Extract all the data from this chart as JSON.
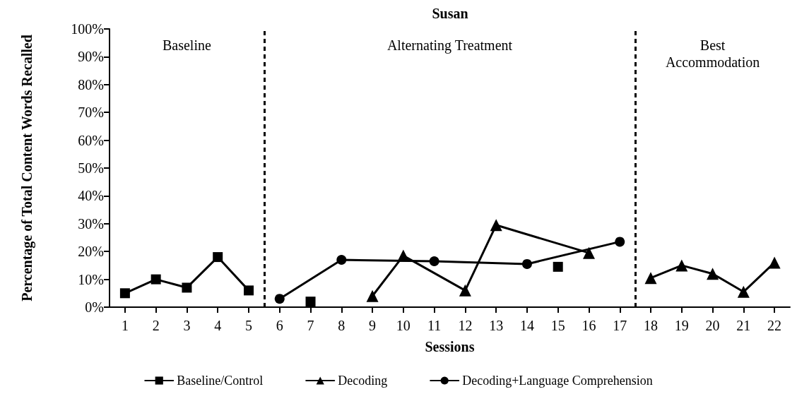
{
  "chart_data": {
    "type": "line",
    "title": "Susan",
    "xlabel": "Sessions",
    "ylabel": "Percentage of Total Content Words Recalled",
    "xlim": [
      0.5,
      22.5
    ],
    "xticks": [
      1,
      2,
      3,
      4,
      5,
      6,
      7,
      8,
      9,
      10,
      11,
      12,
      13,
      14,
      15,
      16,
      17,
      18,
      19,
      20,
      21,
      22
    ],
    "ylim": [
      0,
      100
    ],
    "yticks": [
      {
        "value": 0,
        "label": "0%"
      },
      {
        "value": 10,
        "label": "10%"
      },
      {
        "value": 20,
        "label": "20%"
      },
      {
        "value": 30,
        "label": "30%"
      },
      {
        "value": 40,
        "label": "40%"
      },
      {
        "value": 50,
        "label": "50%"
      },
      {
        "value": 60,
        "label": "60%"
      },
      {
        "value": 70,
        "label": "70%"
      },
      {
        "value": 80,
        "label": "80%"
      },
      {
        "value": 90,
        "label": "90%"
      },
      {
        "value": 100,
        "label": "100%"
      }
    ],
    "series": [
      {
        "name": "Baseline/Control",
        "color": "#000000",
        "marker": "square",
        "x": [
          1,
          2,
          3,
          4,
          5,
          6,
          7,
          8,
          15
        ],
        "values": [
          5,
          10,
          7,
          18,
          6,
          null,
          2,
          null,
          14.5
        ]
      },
      {
        "name": "Decoding",
        "color": "#000000",
        "marker": "triangle",
        "x": [
          9,
          10,
          12,
          13,
          16,
          17,
          18,
          19,
          20,
          21,
          22
        ],
        "values": [
          4,
          18.5,
          6,
          29.5,
          19.5,
          null,
          10.5,
          15,
          12,
          5.5,
          16
        ]
      },
      {
        "name": "Decoding+Language Comprehension",
        "color": "#000000",
        "marker": "circle",
        "x": [
          6,
          8,
          11,
          14,
          17
        ],
        "values": [
          3,
          17,
          16.5,
          15.5,
          23.5
        ]
      }
    ],
    "ref_lines": [
      {
        "axis": "x",
        "value": 5.5,
        "color": "#000000",
        "line_style": "dashed"
      },
      {
        "axis": "x",
        "value": 17.5,
        "color": "#000000",
        "line_style": "dashed"
      }
    ],
    "annotations": [
      "Baseline",
      "Alternating Treatment",
      "Best\nAccommodation"
    ],
    "grid": false,
    "legend": "bottom",
    "line_style": "solid"
  }
}
